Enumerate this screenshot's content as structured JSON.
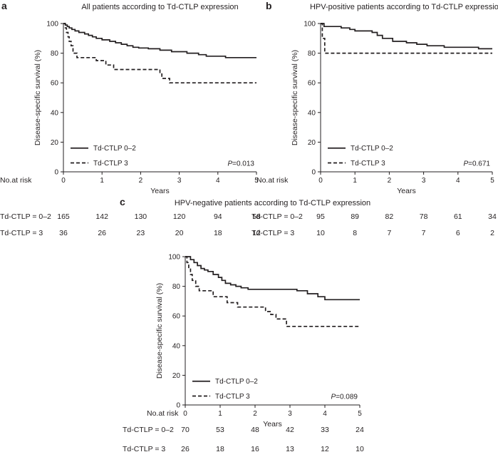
{
  "chart_data": [
    {
      "type": "line",
      "panel": "a",
      "title": "All patients according to Td-CTLP expression",
      "xlabel": "Years",
      "ylabel": "Disease-specific survival (%)",
      "xlim": [
        0,
        5
      ],
      "ylim": [
        0,
        100
      ],
      "xticks": [
        0,
        1,
        2,
        3,
        4,
        5
      ],
      "yticks": [
        0,
        20,
        40,
        60,
        80,
        100
      ],
      "pvalue": "=0.013",
      "pvalue_label": "P",
      "risk_header": "No.at risk",
      "series": [
        {
          "name": "Td-CTLP 0–2",
          "style": "solid",
          "risk_label": "Td-CTLP = 0–2",
          "at_risk": [
            "165",
            "142",
            "130",
            "120",
            "94",
            "58"
          ],
          "steps": [
            [
              0,
              100
            ],
            [
              0.05,
              99
            ],
            [
              0.1,
              98
            ],
            [
              0.15,
              97
            ],
            [
              0.22,
              96
            ],
            [
              0.3,
              95
            ],
            [
              0.4,
              94
            ],
            [
              0.55,
              93
            ],
            [
              0.65,
              92
            ],
            [
              0.75,
              91
            ],
            [
              0.85,
              90
            ],
            [
              1.0,
              89
            ],
            [
              1.2,
              88
            ],
            [
              1.35,
              87
            ],
            [
              1.5,
              86
            ],
            [
              1.65,
              85
            ],
            [
              1.8,
              84
            ],
            [
              1.95,
              83.5
            ],
            [
              2.2,
              83
            ],
            [
              2.5,
              82
            ],
            [
              2.8,
              81
            ],
            [
              3.2,
              80
            ],
            [
              3.5,
              79
            ],
            [
              3.7,
              78
            ],
            [
              4.2,
              77
            ],
            [
              5,
              77
            ]
          ]
        },
        {
          "name": "Td-CTLP 3",
          "style": "dashed",
          "risk_label": "Td-CTLP = 3",
          "at_risk": [
            "36",
            "26",
            "23",
            "20",
            "18",
            "12"
          ],
          "steps": [
            [
              0,
              100
            ],
            [
              0.05,
              97
            ],
            [
              0.08,
              94
            ],
            [
              0.12,
              91
            ],
            [
              0.15,
              88
            ],
            [
              0.2,
              85
            ],
            [
              0.25,
              80
            ],
            [
              0.35,
              77
            ],
            [
              0.85,
              75
            ],
            [
              1.1,
              72
            ],
            [
              1.3,
              69
            ],
            [
              1.6,
              69
            ],
            [
              2.5,
              66
            ],
            [
              2.55,
              63
            ],
            [
              2.75,
              60
            ],
            [
              5,
              60
            ]
          ]
        }
      ]
    },
    {
      "type": "line",
      "panel": "b",
      "title": "HPV-positive patients according to Td-CTLP expression",
      "xlabel": "Years",
      "ylabel": "Disease-specific survival (%)",
      "xlim": [
        0,
        5
      ],
      "ylim": [
        0,
        100
      ],
      "xticks": [
        0,
        1,
        2,
        3,
        4,
        5
      ],
      "yticks": [
        0,
        20,
        40,
        60,
        80,
        100
      ],
      "pvalue": "=0.671",
      "pvalue_label": "P",
      "risk_header": "No.at risk",
      "series": [
        {
          "name": "Td-CTLP 0–2",
          "style": "solid",
          "risk_label": "Td-CTLP = 0–2",
          "at_risk": [
            "95",
            "89",
            "82",
            "78",
            "61",
            "34"
          ],
          "steps": [
            [
              0,
              100
            ],
            [
              0.1,
              98
            ],
            [
              0.6,
              97
            ],
            [
              0.85,
              96
            ],
            [
              1.0,
              95
            ],
            [
              1.5,
              94
            ],
            [
              1.65,
              92
            ],
            [
              1.8,
              90
            ],
            [
              2.1,
              88
            ],
            [
              2.5,
              87
            ],
            [
              2.8,
              86
            ],
            [
              3.1,
              85
            ],
            [
              3.6,
              84
            ],
            [
              4.6,
              83
            ],
            [
              5,
              83
            ]
          ]
        },
        {
          "name": "Td-CTLP 3",
          "style": "dashed",
          "risk_label": "Td-CTLP = 3",
          "at_risk": [
            "10",
            "8",
            "7",
            "7",
            "6",
            "2"
          ],
          "steps": [
            [
              0,
              100
            ],
            [
              0.05,
              90
            ],
            [
              0.12,
              80
            ],
            [
              5,
              80
            ]
          ]
        }
      ]
    },
    {
      "type": "line",
      "panel": "c",
      "title": "HPV-negative patients according to Td-CTLP expression",
      "xlabel": "Years",
      "ylabel": "Disease-specific survival (%)",
      "xlim": [
        0,
        5
      ],
      "ylim": [
        0,
        100
      ],
      "xticks": [
        0,
        1,
        2,
        3,
        4,
        5
      ],
      "yticks": [
        0,
        20,
        40,
        60,
        80,
        100
      ],
      "pvalue": "=0.089",
      "pvalue_label": "P",
      "risk_header": "No.at risk",
      "series": [
        {
          "name": "Td-CTLP 0–2",
          "style": "solid",
          "risk_label": "Td-CTLP = 0–2",
          "at_risk": [
            "70",
            "53",
            "48",
            "42",
            "33",
            "24"
          ],
          "steps": [
            [
              0,
              100
            ],
            [
              0.15,
              98
            ],
            [
              0.25,
              96
            ],
            [
              0.35,
              94
            ],
            [
              0.45,
              92
            ],
            [
              0.55,
              91
            ],
            [
              0.65,
              90
            ],
            [
              0.8,
              88
            ],
            [
              0.95,
              86
            ],
            [
              1.05,
              84
            ],
            [
              1.15,
              82
            ],
            [
              1.3,
              81
            ],
            [
              1.45,
              80
            ],
            [
              1.6,
              79
            ],
            [
              1.8,
              78
            ],
            [
              2.1,
              78
            ],
            [
              2.9,
              78
            ],
            [
              3.2,
              77
            ],
            [
              3.5,
              75
            ],
            [
              3.8,
              73
            ],
            [
              4.0,
              71
            ],
            [
              5,
              71
            ]
          ]
        },
        {
          "name": "Td-CTLP 3",
          "style": "dashed",
          "risk_label": "Td-CTLP = 3",
          "at_risk": [
            "26",
            "18",
            "16",
            "13",
            "12",
            "10"
          ],
          "steps": [
            [
              0,
              100
            ],
            [
              0.05,
              96
            ],
            [
              0.1,
              92
            ],
            [
              0.15,
              88
            ],
            [
              0.2,
              84
            ],
            [
              0.3,
              80
            ],
            [
              0.4,
              77
            ],
            [
              0.8,
              73
            ],
            [
              1.2,
              69
            ],
            [
              1.5,
              66
            ],
            [
              2.3,
              63
            ],
            [
              2.45,
              61
            ],
            [
              2.6,
              58
            ],
            [
              2.9,
              53
            ],
            [
              5,
              53
            ]
          ]
        }
      ]
    }
  ]
}
